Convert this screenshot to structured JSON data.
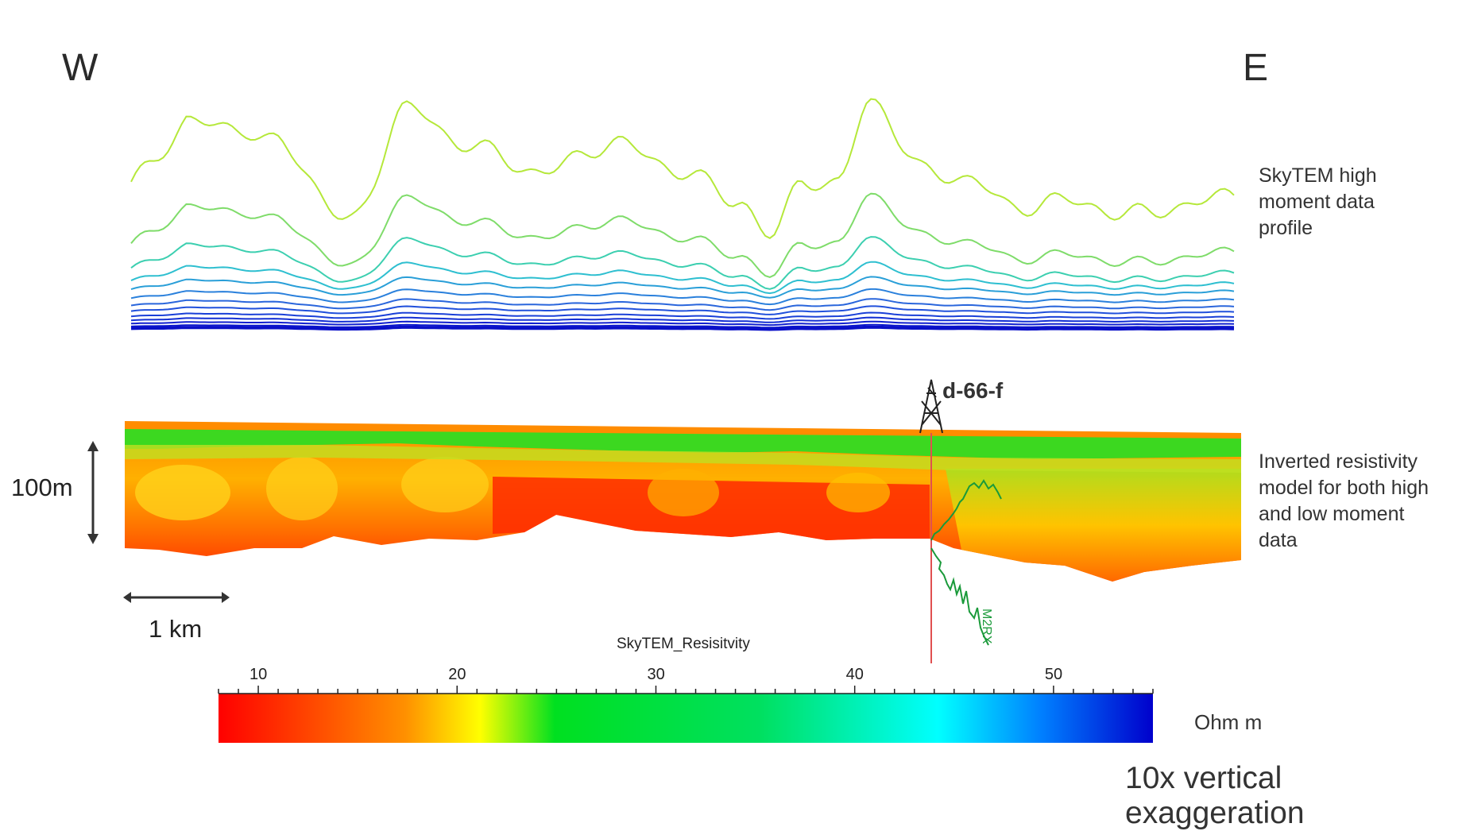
{
  "labels": {
    "west": "W",
    "east": "E",
    "profile_desc": "SkyTEM high\nmoment data\nprofile",
    "model_desc": "Inverted resistivity\nmodel for both high\nand low moment\ndata",
    "vertical_scale": "100m",
    "horizontal_scale": "1 km",
    "well_name": "d-66-f",
    "log_label": "M2RX",
    "colorbar_title": "SkyTEM_Resisitvity",
    "colorbar_unit": "Ohm m",
    "exaggeration": "10x vertical exaggeration"
  },
  "colorbar": {
    "ticks": [
      "10",
      "20",
      "30",
      "40",
      "50"
    ],
    "tick_values": [
      10,
      20,
      30,
      40,
      50
    ],
    "range": [
      8,
      55
    ],
    "colors": [
      "#ff0000",
      "#ff8c00",
      "#ffff00",
      "#00e020",
      "#00ffff",
      "#0070ff",
      "#0000cc"
    ]
  },
  "colors": {
    "profile_top": "#b5e83a",
    "profile_mid": "#33ccc8",
    "profile_bottom": "#1010cc",
    "well_line": "#e05050",
    "log_curve": "#1a9a3a"
  }
}
